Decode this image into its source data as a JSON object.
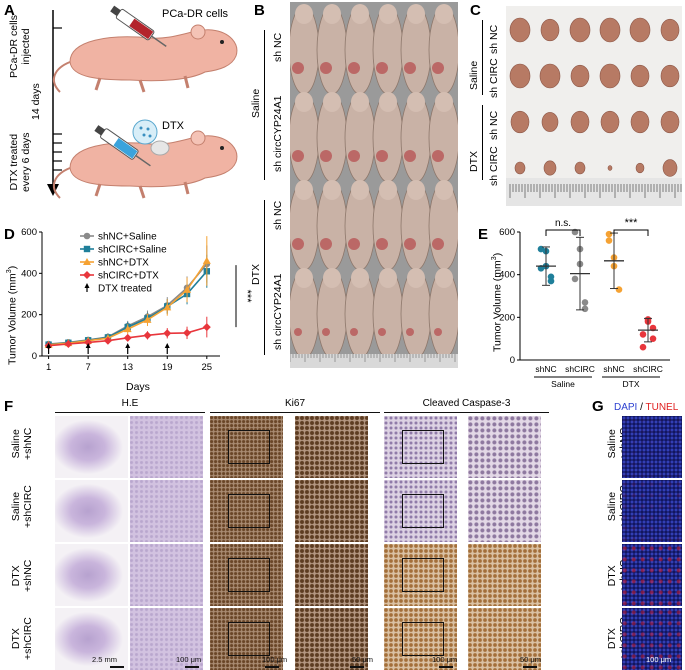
{
  "panels": {
    "A": "A",
    "B": "B",
    "C": "C",
    "D": "D",
    "E": "E",
    "F": "F",
    "G": "G"
  },
  "panel_a": {
    "cells_label": "PCa-DR cells",
    "injected_label": "PCa-DR cells\ninjected",
    "interval_label": "14 days",
    "dtx_label": "DTX",
    "treated_label": "DTX treated\nevery 6 days"
  },
  "panel_b": {
    "group_saline": "Saline",
    "group_dtx": "DTX",
    "sh_nc": "sh NC",
    "sh_circ": "sh circCYP24A1"
  },
  "panel_c": {
    "group_saline": "Saline",
    "group_dtx": "DTX",
    "sh_nc": "sh NC",
    "sh_circ": "sh CIRC"
  },
  "chart_data": [
    {
      "type": "line",
      "panel": "D",
      "ylabel": "Tumor Volume (mm",
      "ylabel_sup": "3",
      "ylabel_tail": ")",
      "xlabel": "Days",
      "x": [
        1,
        4,
        7,
        10,
        13,
        16,
        19,
        22,
        25
      ],
      "xticks": [
        1,
        7,
        13,
        19,
        25
      ],
      "yticks": [
        0,
        200,
        400,
        600
      ],
      "ylim": [
        0,
        600
      ],
      "xlim": [
        0,
        27
      ],
      "series": [
        {
          "name": "shNC+Saline",
          "color": "#8a8a8a",
          "marker": "circle",
          "values": [
            58,
            66,
            78,
            92,
            145,
            190,
            245,
            330,
            445
          ],
          "errors": [
            10,
            12,
            14,
            18,
            25,
            30,
            40,
            55,
            90
          ]
        },
        {
          "name": "shCIRC+Saline",
          "color": "#1f7f9a",
          "marker": "square",
          "values": [
            55,
            64,
            76,
            90,
            140,
            182,
            240,
            300,
            410
          ],
          "errors": [
            10,
            12,
            14,
            18,
            25,
            28,
            35,
            50,
            80
          ]
        },
        {
          "name": "shNC+DTX",
          "color": "#f5a233",
          "marker": "triangle",
          "values": [
            54,
            62,
            74,
            86,
            130,
            175,
            235,
            320,
            460
          ],
          "errors": [
            10,
            12,
            14,
            18,
            24,
            30,
            40,
            60,
            120
          ]
        },
        {
          "name": "shCIRC+DTX",
          "color": "#e8363c",
          "marker": "diamond",
          "values": [
            50,
            58,
            66,
            74,
            88,
            100,
            110,
            112,
            140
          ],
          "errors": [
            8,
            10,
            12,
            14,
            16,
            20,
            25,
            30,
            50
          ]
        }
      ],
      "legend_extra": "DTX treated",
      "arrow_days": [
        1,
        7,
        13,
        19
      ],
      "significance": "***"
    },
    {
      "type": "scatter",
      "panel": "E",
      "ylabel": "Tumor Volume (mm",
      "ylabel_sup": "3",
      "ylabel_tail": ")",
      "yticks": [
        0,
        200,
        400,
        600
      ],
      "ylim": [
        0,
        600
      ],
      "categories": [
        "shNC",
        "shCIRC",
        "shNC",
        "shCIRC"
      ],
      "group_labels": [
        "Saline",
        "DTX"
      ],
      "colors": [
        "#1f7f9a",
        "#8a8a8a",
        "#f5a233",
        "#e8363c"
      ],
      "means": [
        440,
        405,
        465,
        140
      ],
      "sd": [
        90,
        170,
        130,
        55
      ],
      "points": [
        [
          430,
          510,
          370,
          520,
          440,
          390
        ],
        [
          380,
          520,
          240,
          600,
          450,
          270
        ],
        [
          560,
          480,
          330,
          590,
          440
        ],
        [
          120,
          190,
          100,
          60,
          180,
          150
        ]
      ],
      "comparisons": [
        {
          "label": "n.s."
        },
        {
          "label": "***"
        }
      ]
    }
  ],
  "panel_f": {
    "headers": [
      "H.E",
      "Ki67",
      "Cleaved Caspase-3"
    ],
    "rows": [
      "Saline\n+shNC",
      "Saline\n+shCIRC",
      "DTX\n+shNC",
      "DTX\n+shCIRC"
    ],
    "scale_labels": [
      "2.5 mm",
      "100 μm",
      "100 μm",
      "50 μm",
      "100 μm",
      "50 μm"
    ]
  },
  "panel_g": {
    "title_dapi": "DAPI",
    "title_sep": " / ",
    "title_tunel": "TUNEL",
    "rows": [
      "Saline\n+shNC",
      "Saline\n+shCIRC",
      "DTX\n+shNC",
      "DTX\n+shCIRC"
    ],
    "scale_label": "100 μm"
  }
}
